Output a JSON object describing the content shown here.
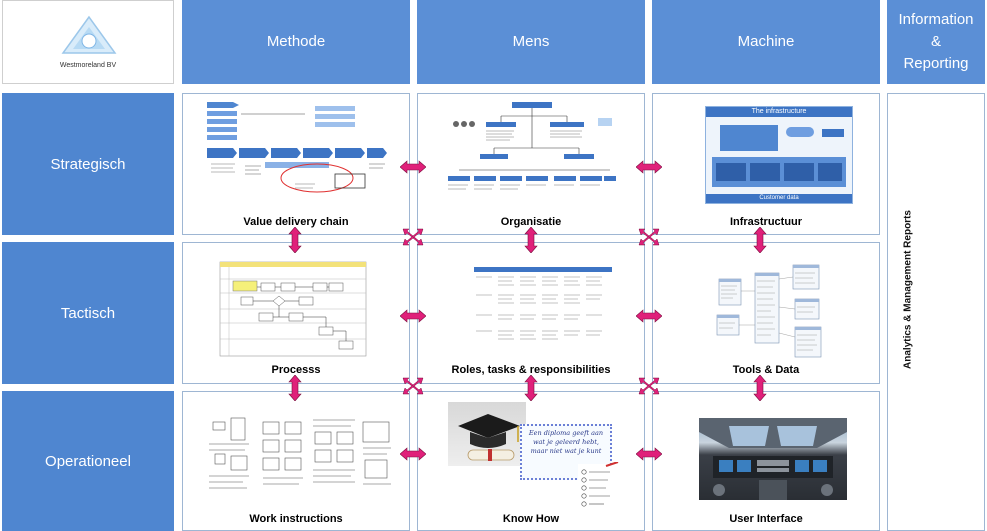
{
  "logo": {
    "company": "Westmoreland BV"
  },
  "columns": [
    "Methode",
    "Mens",
    "Machine"
  ],
  "info_column": {
    "title": "Information & Reporting",
    "lines": [
      "Information",
      "&",
      "Reporting"
    ],
    "side_label": "Analytics & Management Reports"
  },
  "rows": [
    "Strategisch",
    "Tactisch",
    "Operationeel"
  ],
  "cells": {
    "strategisch": {
      "methode": "Value delivery chain",
      "mens": "Organisatie",
      "machine": "Infrastructuur"
    },
    "tactisch": {
      "methode": "Processs",
      "mens": "Roles, tasks & responsibilities",
      "machine": "Tools & Data"
    },
    "operationeel": {
      "methode": "Work instructions",
      "mens": "Know How",
      "machine": "User Interface"
    }
  },
  "thumb_text": {
    "infra_title": "The infrastructure",
    "infra_bottom": "Customer data",
    "diploma": "Een diploma geeft aan wat je geleerd hebt, maar niet wat je kunt"
  },
  "colors": {
    "header": "#5b8fd6",
    "row": "#4f86d0",
    "arrow": "#e0207a",
    "border": "#9eb6d3"
  }
}
